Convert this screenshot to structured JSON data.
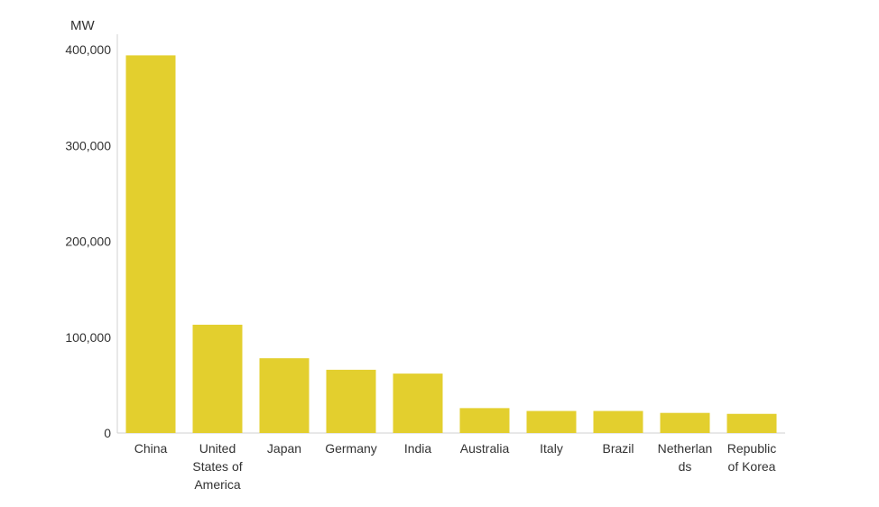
{
  "chart_data": {
    "type": "bar",
    "unit": "MW",
    "categories": [
      "China",
      "United States of America",
      "Japan",
      "Germany",
      "India",
      "Australia",
      "Italy",
      "Brazil",
      "Netherlands",
      "Republic of Korea"
    ],
    "category_label_lines": [
      [
        "China"
      ],
      [
        "United",
        "States of",
        "America"
      ],
      [
        "Japan"
      ],
      [
        "Germany"
      ],
      [
        "India"
      ],
      [
        "Australia"
      ],
      [
        "Italy"
      ],
      [
        "Brazil"
      ],
      [
        "Netherlan",
        "ds"
      ],
      [
        "Republic",
        "of Korea"
      ]
    ],
    "values": [
      394000,
      113000,
      78000,
      66000,
      62000,
      26000,
      23000,
      23000,
      21000,
      20000
    ],
    "ylim": [
      0,
      400000
    ],
    "yticks": [
      0,
      100000,
      200000,
      300000,
      400000
    ],
    "ytick_labels": [
      "0",
      "100,000",
      "200,000",
      "300,000",
      "400,000"
    ],
    "grid": false,
    "legend": "none",
    "bar_color": "#e3cf2e"
  }
}
